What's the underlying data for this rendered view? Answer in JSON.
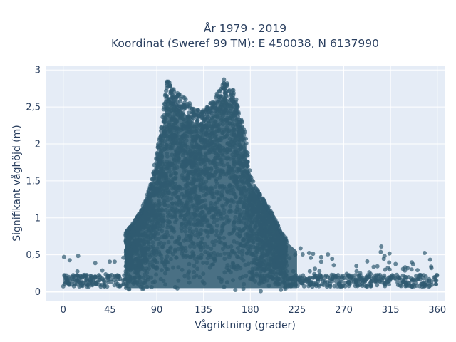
{
  "chart_data": {
    "type": "scatter",
    "title_line1": "År 1979 - 2019",
    "title_line2": "Koordinat (Sweref 99 TM): E 450038, N 6137990",
    "xlabel": "Vågriktning (grader)",
    "ylabel": "Signifikant våghöjd (m)",
    "xlim": [
      -17,
      367
    ],
    "ylim": [
      -0.12,
      3.06
    ],
    "xticks": [
      0,
      45,
      90,
      135,
      180,
      225,
      270,
      315,
      360
    ],
    "xtick_labels": [
      "0",
      "45",
      "90",
      "135",
      "180",
      "225",
      "270",
      "315",
      "360"
    ],
    "yticks": [
      0,
      0.5,
      1,
      1.5,
      2,
      2.5,
      3
    ],
    "ytick_labels": [
      "0",
      "0,5",
      "1",
      "1,5",
      "2",
      "2,5",
      "3"
    ],
    "grid": true,
    "marker_color": "#2f5a70",
    "plot_bg": "#e5ecf6",
    "envelope": {
      "description_of_series": "Dense cloud of wave observations; upper envelope of significant wave height by direction",
      "direction_deg": [
        0,
        15,
        30,
        45,
        60,
        75,
        85,
        95,
        100,
        105,
        115,
        125,
        135,
        145,
        155,
        160,
        165,
        170,
        175,
        180,
        190,
        200,
        210,
        225,
        240,
        270,
        300,
        330,
        360
      ],
      "max_height_m": [
        0.5,
        0.45,
        0.5,
        0.6,
        0.8,
        1.1,
        1.5,
        2.3,
        2.9,
        2.75,
        2.65,
        2.5,
        2.45,
        2.6,
        2.9,
        2.8,
        2.7,
        2.4,
        2.2,
        1.6,
        1.3,
        1.1,
        0.8,
        0.6,
        0.5,
        0.5,
        0.6,
        0.5,
        0.45
      ],
      "min_height_m": 0.0,
      "typical_low_m": 0.15
    }
  }
}
